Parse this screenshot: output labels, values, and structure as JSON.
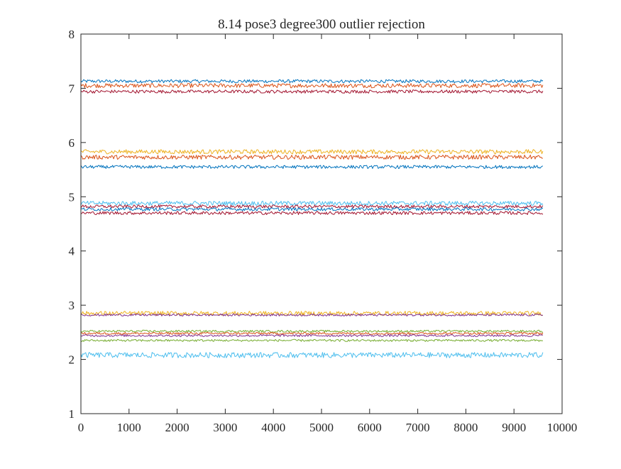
{
  "chart_data": {
    "type": "line",
    "title": "8.14 pose3  degree300 outlier rejection",
    "xlabel": "",
    "ylabel": "",
    "xlim": [
      0,
      10000
    ],
    "ylim": [
      1,
      8
    ],
    "x_ticks": [
      0,
      1000,
      2000,
      3000,
      4000,
      5000,
      6000,
      7000,
      8000,
      9000,
      10000
    ],
    "y_ticks": [
      1,
      2,
      3,
      4,
      5,
      6,
      7,
      8
    ],
    "x_range": [
      0,
      9600
    ],
    "grid": false,
    "legend": "none",
    "series": [
      {
        "level": 7.13,
        "noise": 0.03,
        "color": "#0072BD"
      },
      {
        "level": 7.05,
        "noise": 0.04,
        "color": "#D95319"
      },
      {
        "level": 6.94,
        "noise": 0.03,
        "color": "#A2142F"
      },
      {
        "level": 5.83,
        "noise": 0.04,
        "color": "#EDB120"
      },
      {
        "level": 5.73,
        "noise": 0.04,
        "color": "#D95319"
      },
      {
        "level": 5.55,
        "noise": 0.03,
        "color": "#0072BD"
      },
      {
        "level": 4.88,
        "noise": 0.04,
        "color": "#4DBEEE"
      },
      {
        "level": 4.82,
        "noise": 0.03,
        "color": "#A2142F"
      },
      {
        "level": 4.77,
        "noise": 0.03,
        "color": "#0072BD"
      },
      {
        "level": 4.7,
        "noise": 0.03,
        "color": "#A2142F"
      },
      {
        "level": 2.85,
        "noise": 0.04,
        "color": "#EDB120"
      },
      {
        "level": 2.82,
        "noise": 0.02,
        "color": "#7E2F8E"
      },
      {
        "level": 2.52,
        "noise": 0.02,
        "color": "#77AC30"
      },
      {
        "level": 2.48,
        "noise": 0.02,
        "color": "#D95319"
      },
      {
        "level": 2.44,
        "noise": 0.02,
        "color": "#7E2F8E"
      },
      {
        "level": 2.35,
        "noise": 0.02,
        "color": "#77AC30"
      },
      {
        "level": 2.08,
        "noise": 0.05,
        "color": "#4DBEEE"
      }
    ]
  }
}
